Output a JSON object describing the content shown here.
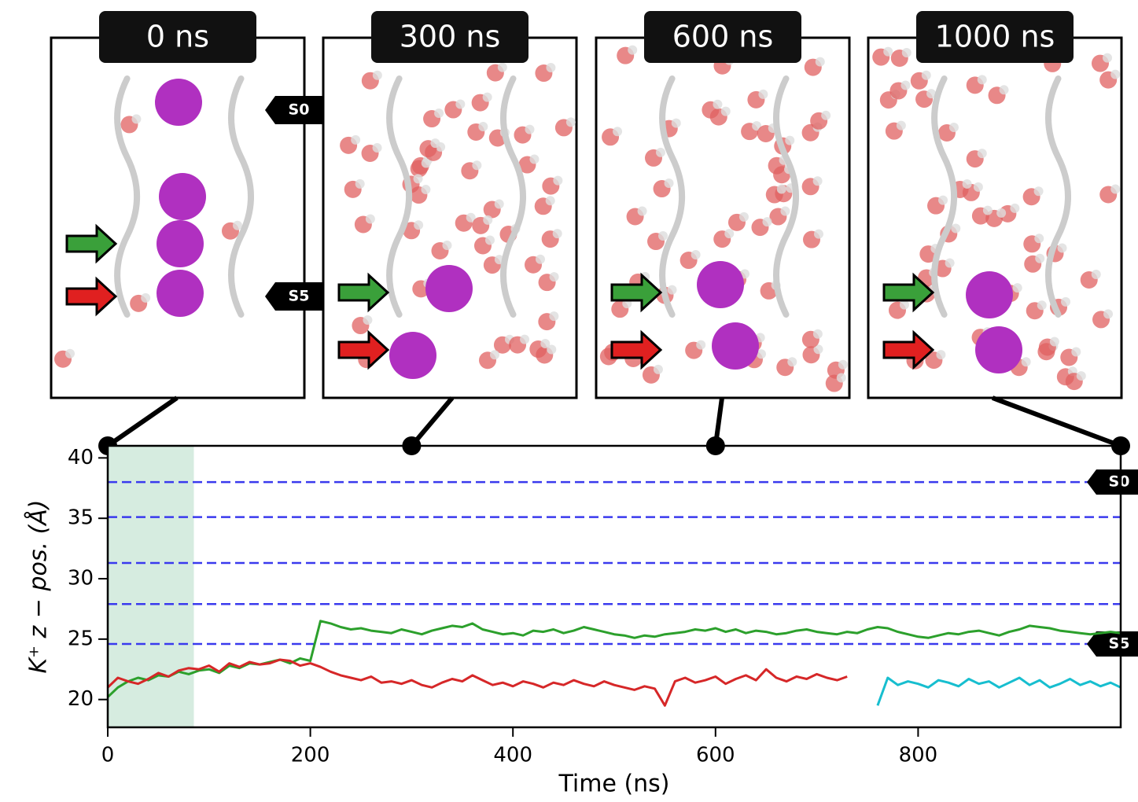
{
  "chart_data": {
    "type": "line",
    "xlabel": "Time (ns)",
    "ylabel": "K⁺ z − pos. (Å)",
    "xlim": [
      0,
      1000
    ],
    "ylim": [
      17.7,
      41
    ],
    "xticks": [
      0,
      200,
      400,
      600,
      800
    ],
    "yticks": [
      20,
      25,
      30,
      35,
      40
    ],
    "shaded_region": {
      "xlim": [
        0,
        85
      ],
      "color": "#d6ece0"
    },
    "site_levels": [
      38,
      35.1,
      31.3,
      27.9,
      24.6
    ],
    "site_labels": [
      "S0",
      null,
      null,
      null,
      "S5"
    ],
    "site_color": "#3a3aee",
    "snapshots": [
      {
        "label": "0 ns",
        "time": 0
      },
      {
        "label": "300 ns",
        "time": 300
      },
      {
        "label": "600 ns",
        "time": 600
      },
      {
        "label": "1000 ns",
        "time": 1000
      }
    ],
    "x": [
      0,
      10,
      20,
      30,
      40,
      50,
      60,
      70,
      80,
      90,
      100,
      110,
      120,
      130,
      140,
      150,
      160,
      170,
      180,
      190,
      200,
      210,
      220,
      230,
      240,
      250,
      260,
      270,
      280,
      290,
      300,
      310,
      320,
      330,
      340,
      350,
      360,
      370,
      380,
      390,
      400,
      410,
      420,
      430,
      440,
      450,
      460,
      470,
      480,
      490,
      500,
      510,
      520,
      530,
      540,
      550,
      560,
      570,
      580,
      590,
      600,
      610,
      620,
      630,
      640,
      650,
      660,
      670,
      680,
      690,
      700,
      710,
      720,
      730,
      740,
      750,
      760,
      770,
      780,
      790,
      800,
      810,
      820,
      830,
      840,
      850,
      860,
      870,
      880,
      890,
      900,
      910,
      920,
      930,
      940,
      950,
      960,
      970,
      980,
      990,
      1000
    ],
    "series": [
      {
        "color": "#2ca02c",
        "values": [
          20.2,
          21.0,
          21.5,
          21.8,
          21.6,
          22.0,
          21.9,
          22.3,
          22.1,
          22.4,
          22.5,
          22.2,
          22.8,
          22.6,
          23.0,
          22.9,
          23.1,
          23.3,
          23.0,
          23.4,
          23.2,
          26.5,
          26.3,
          26.0,
          25.8,
          25.9,
          25.7,
          25.6,
          25.5,
          25.8,
          25.6,
          25.4,
          25.7,
          25.9,
          26.1,
          26.0,
          26.3,
          25.8,
          25.6,
          25.4,
          25.5,
          25.3,
          25.7,
          25.6,
          25.8,
          25.5,
          25.7,
          26.0,
          25.8,
          25.6,
          25.4,
          25.3,
          25.1,
          25.3,
          25.2,
          25.4,
          25.5,
          25.6,
          25.8,
          25.7,
          25.9,
          25.6,
          25.8,
          25.5,
          25.7,
          25.6,
          25.4,
          25.5,
          25.7,
          25.8,
          25.6,
          25.5,
          25.4,
          25.6,
          25.5,
          25.8,
          26.0,
          25.9,
          25.6,
          25.4,
          25.2,
          25.1,
          25.3,
          25.5,
          25.4,
          25.6,
          25.7,
          25.5,
          25.3,
          25.6,
          25.8,
          26.1,
          26.0,
          25.9,
          25.7,
          25.6,
          25.5,
          25.4,
          25.5,
          25.6,
          25.5
        ]
      },
      {
        "color": "#d62728",
        "values": [
          21.0,
          21.8,
          21.5,
          21.3,
          21.7,
          22.2,
          21.9,
          22.4,
          22.6,
          22.5,
          22.8,
          22.3,
          23.0,
          22.7,
          23.1,
          22.9,
          23.0,
          23.3,
          23.2,
          22.8,
          23.0,
          22.7,
          22.3,
          22.0,
          21.8,
          21.6,
          21.9,
          21.4,
          21.5,
          21.3,
          21.6,
          21.2,
          21.0,
          21.4,
          21.7,
          21.5,
          22.0,
          21.6,
          21.2,
          21.4,
          21.1,
          21.5,
          21.3,
          21.0,
          21.4,
          21.2,
          21.6,
          21.3,
          21.1,
          21.5,
          21.2,
          21.0,
          20.8,
          21.1,
          20.9,
          19.5,
          21.5,
          21.8,
          21.4,
          21.6,
          21.9,
          21.3,
          21.7,
          22.0,
          21.6,
          22.5,
          21.8,
          21.5,
          21.9,
          21.7,
          22.1,
          21.8,
          21.6,
          21.9,
          null,
          null,
          null,
          null,
          null,
          null,
          null,
          null,
          null,
          null,
          null,
          null,
          null,
          null,
          null,
          null,
          null,
          null,
          null,
          null,
          null,
          null,
          null,
          null,
          null,
          null,
          null
        ]
      },
      {
        "color": "#17becf",
        "values": [
          null,
          null,
          null,
          null,
          null,
          null,
          null,
          null,
          null,
          null,
          null,
          null,
          null,
          null,
          null,
          null,
          null,
          null,
          null,
          null,
          null,
          null,
          null,
          null,
          null,
          null,
          null,
          null,
          null,
          null,
          null,
          null,
          null,
          null,
          null,
          null,
          null,
          null,
          null,
          null,
          null,
          null,
          null,
          null,
          null,
          null,
          null,
          null,
          null,
          null,
          null,
          null,
          null,
          null,
          null,
          null,
          null,
          null,
          null,
          null,
          null,
          null,
          null,
          null,
          null,
          null,
          null,
          null,
          null,
          null,
          null,
          null,
          null,
          null,
          null,
          null,
          19.5,
          21.8,
          21.2,
          21.5,
          21.3,
          21.0,
          21.6,
          21.4,
          21.1,
          21.7,
          21.3,
          21.5,
          21.0,
          21.4,
          21.8,
          21.2,
          21.6,
          21.0,
          21.3,
          21.7,
          21.2,
          21.5,
          21.1,
          21.4,
          21.0
        ]
      }
    ]
  }
}
